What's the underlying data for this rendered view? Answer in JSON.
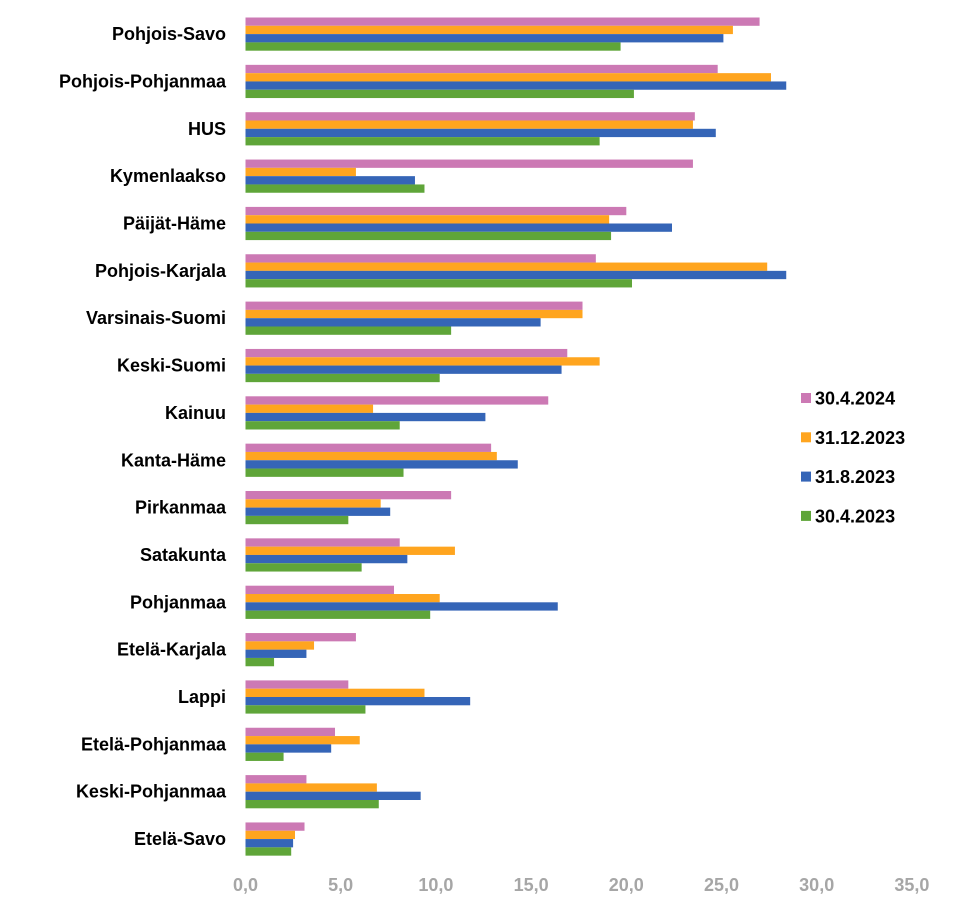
{
  "chart_data": {
    "type": "bar",
    "orientation": "horizontal",
    "title": "",
    "xlabel": "",
    "ylabel": "",
    "xlim": [
      0,
      35
    ],
    "ticks": [
      "0,0",
      "5,0",
      "10,0",
      "15,0",
      "20,0",
      "25,0",
      "30,0",
      "35,0"
    ],
    "tick_values": [
      0,
      5,
      10,
      15,
      20,
      25,
      30,
      35
    ],
    "grid": false,
    "legend_position": "right",
    "categories": [
      "Pohjois-Savo",
      "Pohjois-Pohjanmaa",
      "HUS",
      "Kymenlaakso",
      "Päijät-Häme",
      "Pohjois-Karjala",
      "Varsinais-Suomi",
      "Keski-Suomi",
      "Kainuu",
      "Kanta-Häme",
      "Pirkanmaa",
      "Satakunta",
      "Pohjanmaa",
      "Etelä-Karjala",
      "Lappi",
      "Etelä-Pohjanmaa",
      "Keski-Pohjanmaa",
      "Etelä-Savo"
    ],
    "series": [
      {
        "name": "30.4.2024",
        "color": "#cc79b4",
        "values": [
          27.0,
          24.8,
          23.6,
          23.5,
          20.0,
          18.4,
          17.7,
          16.9,
          15.9,
          12.9,
          10.8,
          8.1,
          7.8,
          5.8,
          5.4,
          4.7,
          3.2,
          3.1
        ]
      },
      {
        "name": "31.12.2023",
        "color": "#ffa51f",
        "values": [
          25.6,
          27.6,
          23.5,
          5.8,
          19.1,
          27.4,
          17.7,
          18.6,
          6.7,
          13.2,
          7.1,
          11.0,
          10.2,
          3.6,
          9.4,
          6.0,
          6.9,
          2.6
        ]
      },
      {
        "name": "31.8.2023",
        "color": "#3565b7",
        "values": [
          25.1,
          28.4,
          24.7,
          8.9,
          22.4,
          28.4,
          15.5,
          16.6,
          12.6,
          14.3,
          7.6,
          8.5,
          16.4,
          3.2,
          11.8,
          4.5,
          9.2,
          2.5
        ]
      },
      {
        "name": "30.4.2023",
        "color": "#5fa539",
        "values": [
          19.7,
          20.4,
          18.6,
          9.4,
          19.2,
          20.3,
          10.8,
          10.2,
          8.1,
          8.3,
          5.4,
          6.1,
          9.7,
          1.5,
          6.3,
          2.0,
          7.0,
          2.4
        ]
      }
    ]
  }
}
